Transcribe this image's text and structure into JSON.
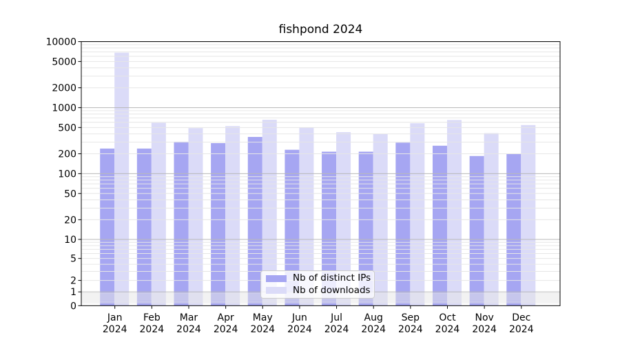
{
  "figure": {
    "title": "fishpond 2024"
  },
  "chart_data": {
    "type": "bar",
    "title": "fishpond 2024",
    "categories": [
      "Jan 2024",
      "Feb 2024",
      "Mar 2024",
      "Apr 2024",
      "May 2024",
      "Jun 2024",
      "Jul 2024",
      "Aug 2024",
      "Sep 2024",
      "Oct 2024",
      "Nov 2024",
      "Dec 2024"
    ],
    "series": [
      {
        "name": "Nb of distinct IPs",
        "color": "#a6a6f2",
        "values": [
          240,
          240,
          305,
          290,
          360,
          230,
          215,
          215,
          295,
          265,
          185,
          200
        ]
      },
      {
        "name": "Nb of downloads",
        "color": "#dbdbf8",
        "values": [
          6800,
          590,
          490,
          525,
          655,
          500,
          425,
          400,
          580,
          650,
          410,
          545
        ]
      }
    ],
    "y_scale": "asinh (log-like, linear near zero)",
    "ylim": [
      0,
      10000
    ],
    "y_ticks": [
      0,
      1,
      2,
      5,
      10,
      20,
      50,
      100,
      200,
      500,
      1000,
      2000,
      5000,
      10000
    ],
    "grid": {
      "major": "on",
      "minor": "on"
    },
    "legend": {
      "position": "lower center",
      "items": [
        {
          "label": "Nb of distinct IPs",
          "color": "#a6a6f2"
        },
        {
          "label": "Nb of downloads",
          "color": "#dbdbf8"
        }
      ]
    },
    "colors": {
      "grid_minor": "#e6e6e6",
      "grid_major": "#b8b8b8",
      "spine": "#000000",
      "text": "#000000"
    }
  }
}
